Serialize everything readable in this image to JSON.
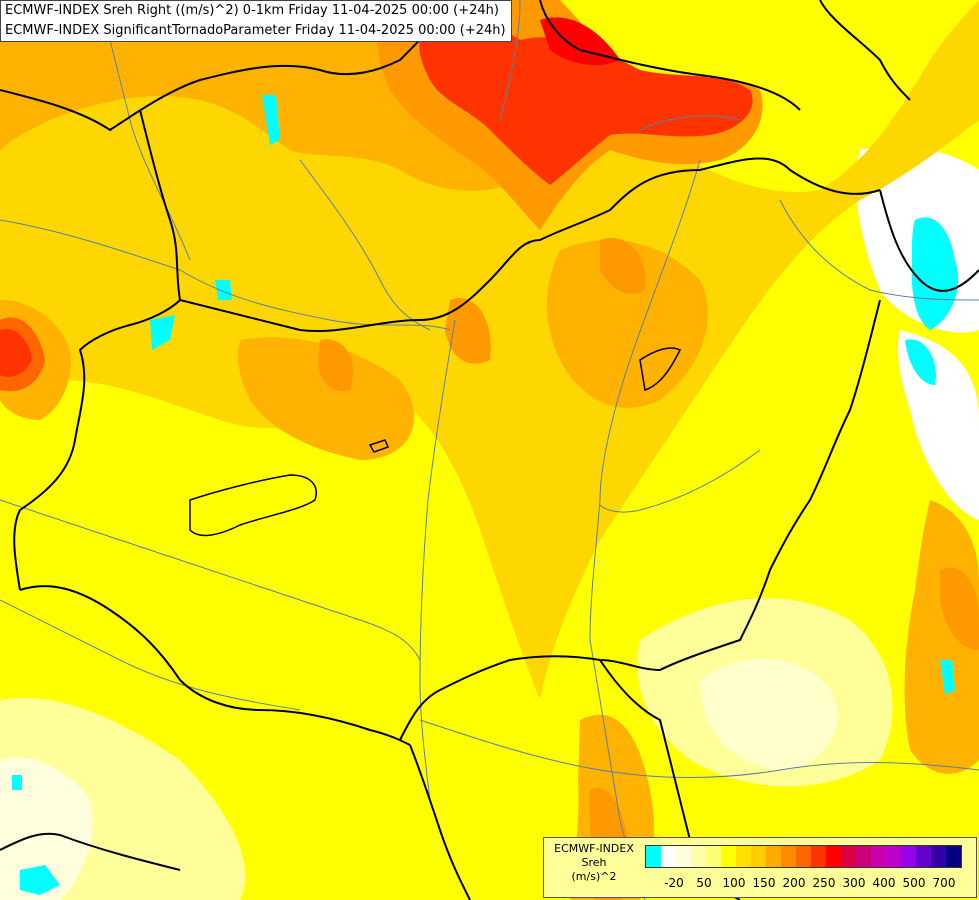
{
  "titles": {
    "line1": "ECMWF-INDEX Sreh Right ((m/s)^2) 0-1km Friday 11-04-2025 00:00 (+24h)",
    "line2": "ECMWF-INDEX SignificantTornadoParameter Friday 11-04-2025 00:00 (+24h)"
  },
  "legend": {
    "title_line1": "ECMWF-INDEX",
    "title_line2": "Sreh",
    "title_line3": "(m/s)^2",
    "colors": [
      "#00ffff",
      "#ffffff",
      "#ffffdd",
      "#ffffaa",
      "#ffff77",
      "#ffff00",
      "#ffe000",
      "#ffcc00",
      "#ffaa00",
      "#ff8c00",
      "#ff6600",
      "#ff3300",
      "#ff0000",
      "#dd0044",
      "#cc0077",
      "#cc00aa",
      "#bb00cc",
      "#9900ee",
      "#6600cc",
      "#3300aa",
      "#000080"
    ],
    "ticks": [
      "-20",
      "50",
      "100",
      "150",
      "200",
      "250",
      "300",
      "400",
      "500",
      "700"
    ]
  },
  "palette": {
    "cyan": "#00ffff",
    "white": "#ffffff",
    "pale_yellow": "#ffffaa",
    "yellow": "#ffff00",
    "gold": "#ffd700",
    "amber": "#ffb300",
    "orange": "#ff9900",
    "dark_orange": "#ff6600",
    "red": "#ff1a00",
    "border": "#000000",
    "river": "#5a7fa0"
  }
}
